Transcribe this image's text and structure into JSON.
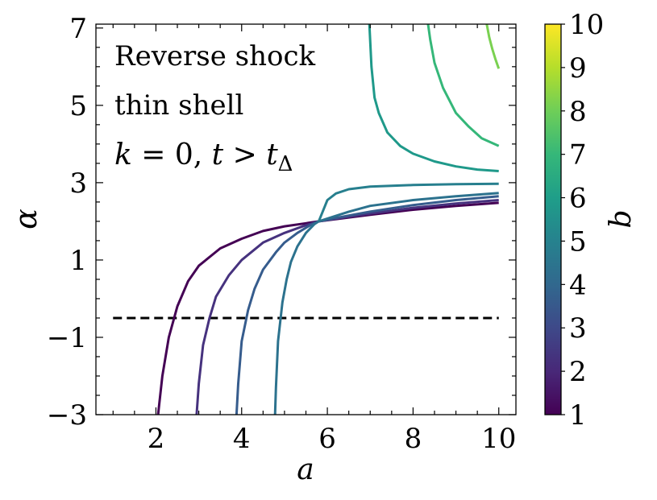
{
  "chart_data": {
    "type": "line",
    "annotation": {
      "line1": "Reverse shock",
      "line2": "thin shell",
      "line3_k": "k",
      "line3_eq": " = 0, ",
      "line3_t": "t",
      "line3_gt": " > ",
      "line3_t2": "t",
      "line3_sub": "Δ"
    },
    "xlabel": "a",
    "ylabel": "α",
    "colorbar_label": "b",
    "xlim": [
      0.6,
      10.4
    ],
    "ylim": [
      -3,
      7.1
    ],
    "xticks": [
      2,
      4,
      6,
      8,
      10
    ],
    "xtick_labels": [
      "2",
      "4",
      "6",
      "8",
      "10"
    ],
    "yticks": [
      -3,
      -1,
      1,
      3,
      5,
      7
    ],
    "ytick_labels": [
      "−3",
      "−1",
      "1",
      "3",
      "5",
      "7"
    ],
    "colorbar": {
      "range": [
        1,
        10
      ],
      "ticks": [
        1,
        2,
        3,
        4,
        5,
        6,
        7,
        8,
        9,
        10
      ],
      "tick_labels": [
        "1",
        "2",
        "3",
        "4",
        "5",
        "6",
        "7",
        "8",
        "9",
        "10"
      ]
    },
    "reference_line": {
      "y": -0.5,
      "x_range": [
        1,
        10
      ],
      "style": "dashed"
    },
    "series": [
      {
        "b": 1.0,
        "color": "#440154",
        "x": [
          2.05,
          2.15,
          2.3,
          2.5,
          2.75,
          3.0,
          3.5,
          4.0,
          4.5,
          5.0,
          5.5,
          5.8,
          6.5,
          7.0,
          8.0,
          9.0,
          10.0
        ],
        "y": [
          -3.0,
          -2.0,
          -1.0,
          -0.2,
          0.45,
          0.85,
          1.3,
          1.55,
          1.75,
          1.87,
          1.95,
          2.0,
          2.1,
          2.17,
          2.3,
          2.4,
          2.48
        ]
      },
      {
        "b": 1.5,
        "color": "#46327e",
        "x": [
          2.95,
          3.0,
          3.1,
          3.25,
          3.4,
          3.7,
          4.0,
          4.5,
          5.0,
          5.5,
          5.8,
          6.5,
          7.0,
          8.0,
          9.0,
          10.0
        ],
        "y": [
          -3.0,
          -2.2,
          -1.2,
          -0.5,
          0.05,
          0.6,
          1.0,
          1.45,
          1.7,
          1.9,
          2.0,
          2.12,
          2.2,
          2.35,
          2.46,
          2.55
        ]
      },
      {
        "b": 2.0,
        "color": "#365c8d",
        "x": [
          3.88,
          3.92,
          4.0,
          4.15,
          4.3,
          4.5,
          4.8,
          5.0,
          5.3,
          5.6,
          5.8,
          6.5,
          7.0,
          8.0,
          9.0,
          10.0
        ],
        "y": [
          -3.0,
          -2.2,
          -1.1,
          -0.3,
          0.25,
          0.75,
          1.2,
          1.45,
          1.7,
          1.9,
          2.0,
          2.15,
          2.25,
          2.42,
          2.55,
          2.65
        ]
      },
      {
        "b": 2.5,
        "color": "#2c728e",
        "x": [
          4.78,
          4.8,
          4.85,
          4.95,
          5.05,
          5.15,
          5.3,
          5.5,
          5.7,
          5.8,
          6.5,
          7.0,
          8.0,
          9.0,
          10.0
        ],
        "y": [
          -3.0,
          -2.3,
          -1.1,
          -0.1,
          0.5,
          0.95,
          1.35,
          1.7,
          1.93,
          2.0,
          2.25,
          2.4,
          2.55,
          2.65,
          2.73
        ]
      },
      {
        "b": 3.0,
        "color": "#277f8e",
        "x": [
          5.8,
          6.0,
          6.2,
          6.5,
          7.0,
          7.5,
          8.0,
          9.0,
          10.0
        ],
        "y": [
          2.0,
          2.55,
          2.72,
          2.83,
          2.9,
          2.92,
          2.94,
          2.96,
          2.97
        ]
      },
      {
        "b": 5.5,
        "color": "#1f998a",
        "x": [
          6.98,
          7.03,
          7.1,
          7.2,
          7.4,
          7.7,
          8.0,
          8.5,
          9.0,
          9.5,
          10.0
        ],
        "y": [
          7.1,
          6.0,
          5.2,
          4.8,
          4.3,
          3.95,
          3.75,
          3.55,
          3.42,
          3.34,
          3.3
        ]
      },
      {
        "b": 6.5,
        "color": "#35b779",
        "x": [
          8.35,
          8.4,
          8.5,
          8.7,
          9.0,
          9.3,
          9.6,
          10.0
        ],
        "y": [
          7.1,
          6.7,
          6.1,
          5.45,
          4.8,
          4.45,
          4.15,
          3.95
        ]
      },
      {
        "b": 7.5,
        "color": "#7ad151",
        "x": [
          9.72,
          9.78,
          9.85,
          9.92,
          10.0
        ],
        "y": [
          7.1,
          6.75,
          6.45,
          6.2,
          5.95
        ]
      }
    ]
  }
}
